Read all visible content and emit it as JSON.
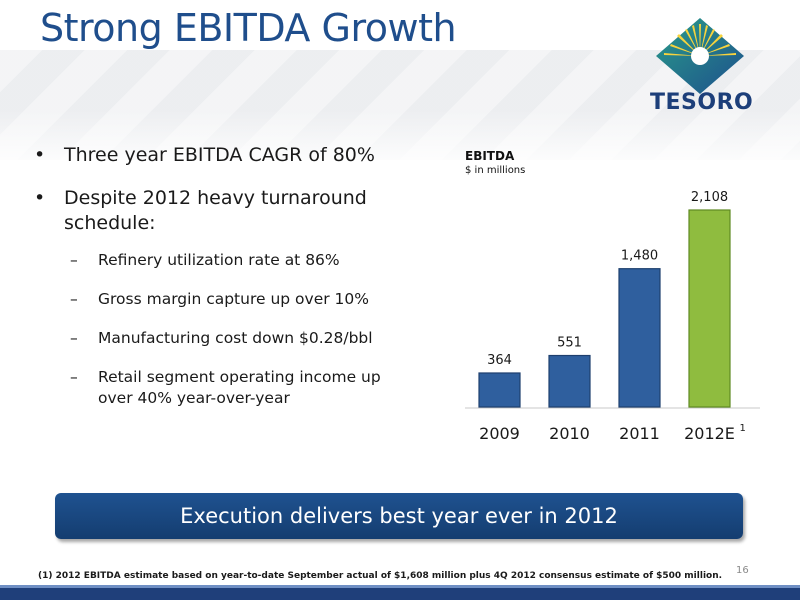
{
  "slide": {
    "title": "Strong EBITDA Growth",
    "logo_text": "TESORO",
    "bullets": [
      {
        "text": "Three year EBITDA CAGR of 80%"
      },
      {
        "text": "Despite 2012 heavy turnaround schedule:"
      }
    ],
    "sub_bullets": [
      {
        "text": "Refinery utilization rate at 86%"
      },
      {
        "text": "Gross margin capture up over 10%"
      },
      {
        "text": "Manufacturing cost down $0.28/bbl"
      },
      {
        "text": "Retail segment operating income up over 40% year-over-year"
      }
    ],
    "banner": "Execution delivers best year ever in 2012",
    "footnote": "(1) 2012 EBITDA estimate based on year-to-date September actual of $1,608 million plus 4Q 2012 consensus estimate of $500 million.",
    "page_number": "16"
  },
  "colors": {
    "title": "#1f4e8c",
    "bar_actual": "#2f5f9e",
    "bar_estimate": "#8fbc3f",
    "banner": "#1a4a85"
  },
  "chart_data": {
    "type": "bar",
    "title": "EBITDA",
    "subtitle": "$ in millions",
    "categories": [
      "2009",
      "2010",
      "2011",
      "2012E"
    ],
    "category_superscripts": [
      "",
      "",
      "",
      "1"
    ],
    "values": [
      364,
      551,
      1480,
      2108
    ],
    "value_labels": [
      "364",
      "551",
      "1,480",
      "2,108"
    ],
    "estimate_flags": [
      false,
      false,
      false,
      true
    ],
    "ylim": [
      0,
      2108
    ],
    "grid": false,
    "legend": "none"
  }
}
